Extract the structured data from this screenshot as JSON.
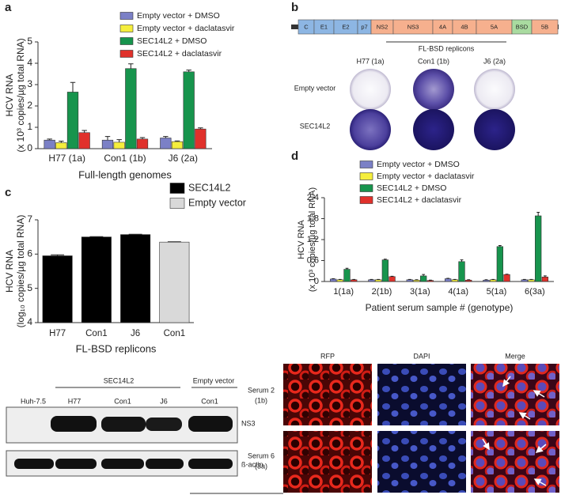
{
  "panel_labels": [
    "a",
    "b",
    "c",
    "d"
  ],
  "chart_data": [
    {
      "type": "bar",
      "ylabel": [
        "HCV RNA",
        "(x 10³ copies/µg total RNA)"
      ],
      "xlabel": "Full-length genomes",
      "categories": [
        "H77 (1a)",
        "Con1 (1b)",
        "J6 (2a)"
      ],
      "ylim": [
        0,
        5
      ],
      "yticks": [
        0,
        1,
        2,
        3,
        4,
        5
      ],
      "series": [
        {
          "name": "Empty vector + DMSO",
          "color": "#7b80c6",
          "values": [
            0.4,
            0.4,
            0.5
          ],
          "errors": [
            0.05,
            0.17,
            0.07
          ]
        },
        {
          "name": "Empty vector + daclatasvir",
          "color": "#f5ee3c",
          "values": [
            0.28,
            0.3,
            0.33
          ],
          "errors": [
            0.07,
            0.12,
            0.03
          ]
        },
        {
          "name": "SEC14L2 + DMSO",
          "color": "#17944d",
          "values": [
            2.65,
            3.75,
            3.6
          ],
          "errors": [
            0.45,
            0.22,
            0.08
          ]
        },
        {
          "name": "SEC14L2 + daclatasvir",
          "color": "#e0312b",
          "values": [
            0.75,
            0.45,
            0.92
          ],
          "errors": [
            0.1,
            0.07,
            0.05
          ]
        }
      ]
    },
    {
      "type": "bar",
      "ylabel": [
        "HCV RNA",
        "(log₁₀ copies/µg total RNA)"
      ],
      "xlabel": "FL-BSD replicons",
      "categories": [
        "H77",
        "Con1",
        "J6",
        "Con1"
      ],
      "ylim": [
        4,
        7
      ],
      "yticks": [
        4,
        5,
        6,
        7
      ],
      "series": [
        {
          "name": "SEC14L2",
          "color": "#000000",
          "values": [
            5.95,
            6.5,
            6.57,
            null
          ],
          "errors": [
            0.03,
            0.01,
            0.01,
            null
          ]
        },
        {
          "name": "Empty vector",
          "color": "#d9d9d9",
          "values": [
            null,
            null,
            null,
            6.35
          ],
          "errors": [
            null,
            null,
            null,
            0.01
          ]
        }
      ]
    },
    {
      "type": "bar",
      "ylabel": [
        "HCV RNA",
        "(x 10³ copies/µg total RNA)"
      ],
      "xlabel": "Patient serum sample # (genotype)",
      "categories": [
        "1(1a)",
        "2(1b)",
        "3(1a)",
        "4(1a)",
        "5(1a)",
        "6(3a)"
      ],
      "ylim": [
        0,
        2.4
      ],
      "yticks": [
        0,
        0.6,
        1.2,
        1.8,
        2.4
      ],
      "series": [
        {
          "name": "Empty vector + DMSO",
          "color": "#7b80c6",
          "values": [
            0.07,
            0.05,
            0.05,
            0.08,
            0.04,
            0.05
          ],
          "errors": [
            0.01,
            0.01,
            0.01,
            0.01,
            0.01,
            0.01
          ]
        },
        {
          "name": "Empty vector + daclatasvir",
          "color": "#f5ee3c",
          "values": [
            0.05,
            0.05,
            0.04,
            0.05,
            0.05,
            0.05
          ],
          "errors": [
            0.01,
            0.01,
            0.01,
            0.01,
            0.01,
            0.01
          ]
        },
        {
          "name": "SEC14L2 + DMSO",
          "color": "#17944d",
          "values": [
            0.35,
            0.62,
            0.16,
            0.57,
            1.0,
            1.88
          ],
          "errors": [
            0.03,
            0.02,
            0.04,
            0.05,
            0.03,
            0.1
          ]
        },
        {
          "name": "SEC14L2 + daclatasvir",
          "color": "#e0312b",
          "values": [
            0.05,
            0.14,
            0.03,
            0.04,
            0.2,
            0.13
          ],
          "errors": [
            0.01,
            0.01,
            0.01,
            0.01,
            0.01,
            0.03
          ]
        }
      ]
    }
  ],
  "panel_b": {
    "genome": [
      "C",
      "E1",
      "E2",
      "p7",
      "NS2",
      "NS3",
      "4A",
      "4B",
      "5A",
      "BSD",
      "5B"
    ],
    "group_label": "FL-BSD replicons",
    "columns": [
      "H77 (1a)",
      "Con1 (1b)",
      "J6 (2a)"
    ],
    "rows": [
      "Empty vector",
      "SEC14L2"
    ]
  },
  "blot": {
    "groups": [
      "SEC14L2",
      "Empty vector"
    ],
    "lanes": [
      "Huh-7.5",
      "H77",
      "Con1",
      "J6",
      "Con1"
    ],
    "bands": [
      "NS3",
      "ß-actin"
    ]
  },
  "microscopy": {
    "columns": [
      "RFP",
      "DAPI",
      "Merge"
    ],
    "rows": [
      [
        "Serum 2",
        "(1b)"
      ],
      [
        "Serum 6",
        "(3a)"
      ]
    ]
  }
}
